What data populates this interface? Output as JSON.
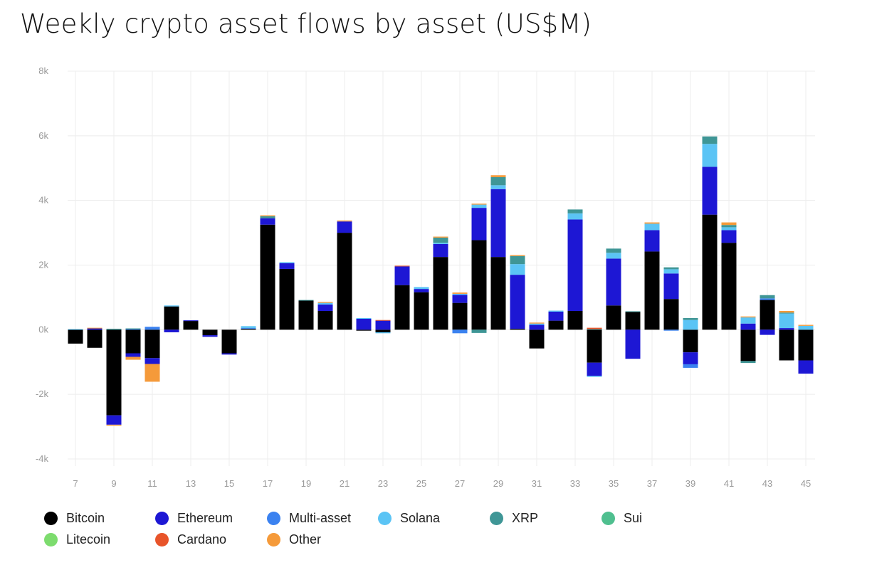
{
  "chart_data": {
    "type": "bar",
    "stacked": true,
    "title": "Weekly crypto asset flows by asset (US$M)",
    "xlabel": "",
    "ylabel": "",
    "ylim": [
      -4000,
      8000
    ],
    "yticks": [
      -4000,
      -2000,
      0,
      2000,
      4000,
      6000,
      8000
    ],
    "ytick_labels": [
      "-4k",
      "-2k",
      "0k",
      "2k",
      "4k",
      "6k",
      "8k"
    ],
    "xtick_labels": [
      "7",
      "9",
      "11",
      "13",
      "15",
      "17",
      "19",
      "21",
      "23",
      "25",
      "27",
      "29",
      "31",
      "33",
      "35",
      "37",
      "39",
      "41",
      "43",
      "45"
    ],
    "grid": true,
    "legend_position": "bottom",
    "categories": [
      7,
      8,
      9,
      10,
      11,
      12,
      13,
      14,
      15,
      16,
      17,
      18,
      19,
      20,
      21,
      22,
      23,
      24,
      25,
      26,
      27,
      28,
      29,
      30,
      31,
      32,
      33,
      34,
      35,
      36,
      37,
      38,
      39,
      40,
      41,
      42,
      43,
      44,
      45
    ],
    "series": [
      {
        "name": "Bitcoin",
        "color": "#000000",
        "values": [
          -430,
          -560,
          -2650,
          -730,
          -880,
          720,
          270,
          -170,
          -730,
          30,
          3250,
          1880,
          900,
          580,
          3000,
          -30,
          -80,
          1380,
          1160,
          2250,
          830,
          2770,
          2250,
          30,
          -580,
          280,
          580,
          -1020,
          750,
          550,
          2420,
          950,
          -700,
          3560,
          2690,
          -970,
          920,
          -950,
          -950
        ]
      },
      {
        "name": "Ethereum",
        "color": "#1d17d4",
        "values": [
          0,
          40,
          -290,
          -110,
          -180,
          -80,
          20,
          -50,
          -40,
          0,
          200,
          180,
          0,
          200,
          350,
          340,
          280,
          580,
          100,
          400,
          250,
          1000,
          2100,
          1670,
          150,
          280,
          2830,
          -410,
          1450,
          -900,
          660,
          790,
          -370,
          1480,
          390,
          190,
          -160,
          50,
          -410
        ]
      },
      {
        "name": "Multi-asset",
        "color": "#3b82f0",
        "values": [
          0,
          0,
          0,
          20,
          90,
          0,
          0,
          0,
          0,
          20,
          0,
          0,
          0,
          0,
          0,
          0,
          0,
          0,
          0,
          0,
          -110,
          0,
          0,
          0,
          0,
          0,
          0,
          0,
          0,
          0,
          0,
          -30,
          -110,
          0,
          0,
          0,
          50,
          0,
          0
        ]
      },
      {
        "name": "Solana",
        "color": "#5bc4f5",
        "values": [
          20,
          0,
          0,
          0,
          0,
          30,
          0,
          0,
          0,
          60,
          0,
          30,
          0,
          50,
          0,
          20,
          -30,
          0,
          60,
          40,
          30,
          100,
          120,
          330,
          40,
          30,
          190,
          -30,
          180,
          0,
          200,
          130,
          300,
          710,
          90,
          190,
          0,
          450,
          120
        ]
      },
      {
        "name": "XRP",
        "color": "#3f9696",
        "values": [
          0,
          0,
          30,
          20,
          0,
          0,
          0,
          0,
          0,
          0,
          60,
          0,
          20,
          0,
          0,
          0,
          0,
          0,
          0,
          160,
          0,
          -100,
          250,
          250,
          0,
          0,
          120,
          20,
          130,
          20,
          0,
          60,
          60,
          230,
          70,
          -60,
          100,
          30,
          0
        ]
      },
      {
        "name": "Sui",
        "color": "#4fbf8f",
        "values": [
          0,
          0,
          0,
          0,
          0,
          0,
          0,
          0,
          0,
          0,
          0,
          0,
          0,
          0,
          0,
          0,
          0,
          0,
          0,
          0,
          0,
          0,
          0,
          0,
          0,
          0,
          0,
          0,
          0,
          0,
          0,
          0,
          0,
          0,
          0,
          0,
          0,
          0,
          0
        ]
      },
      {
        "name": "Litecoin",
        "color": "#7ddc6e",
        "values": [
          0,
          0,
          0,
          0,
          0,
          0,
          0,
          0,
          0,
          0,
          0,
          0,
          0,
          0,
          0,
          0,
          0,
          0,
          0,
          0,
          0,
          0,
          0,
          0,
          0,
          0,
          0,
          0,
          0,
          0,
          0,
          0,
          0,
          0,
          0,
          0,
          0,
          0,
          0
        ]
      },
      {
        "name": "Cardano",
        "color": "#e8542a",
        "values": [
          0,
          0,
          0,
          0,
          0,
          0,
          0,
          0,
          0,
          0,
          0,
          0,
          0,
          0,
          0,
          0,
          20,
          20,
          0,
          0,
          0,
          0,
          0,
          0,
          0,
          0,
          0,
          40,
          0,
          0,
          0,
          0,
          0,
          0,
          0,
          0,
          0,
          0,
          0
        ]
      },
      {
        "name": "Other",
        "color": "#f59a3a",
        "values": [
          0,
          20,
          -30,
          -90,
          -550,
          0,
          0,
          0,
          0,
          0,
          30,
          0,
          0,
          30,
          30,
          0,
          0,
          0,
          0,
          30,
          40,
          30,
          60,
          30,
          30,
          0,
          0,
          0,
          0,
          0,
          40,
          0,
          0,
          0,
          80,
          30,
          0,
          50,
          30
        ]
      }
    ]
  }
}
